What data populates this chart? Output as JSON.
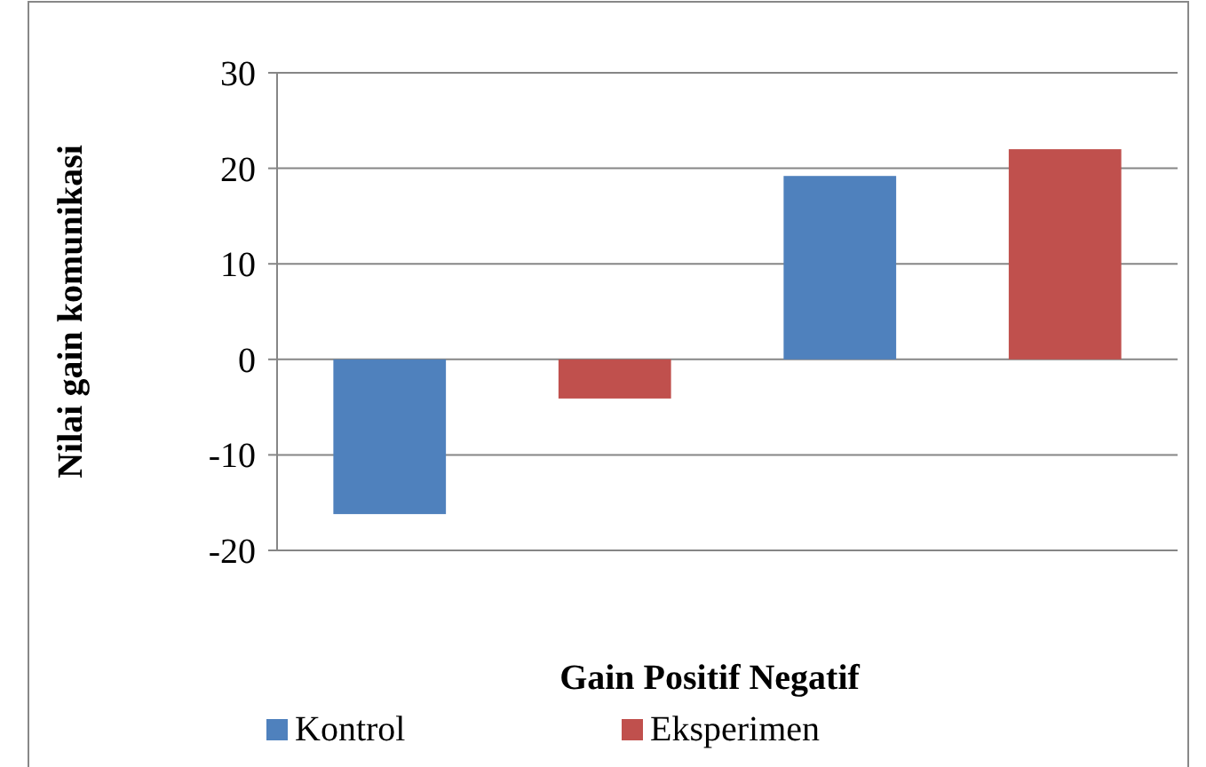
{
  "chart_data": {
    "type": "bar",
    "xlabel": "Gain Positif Negatif",
    "ylabel": "Nilai gain komunikasi",
    "categories": [
      null,
      null,
      null,
      null
    ],
    "series": [
      {
        "name": "Kontrol",
        "color": "#4f81bd",
        "values": [
          -16.2,
          null,
          19.2,
          null
        ]
      },
      {
        "name": "Eksperimen",
        "color": "#c0504d",
        "values": [
          null,
          -4.1,
          null,
          22.0
        ]
      }
    ],
    "ylim": [
      -20,
      30
    ],
    "yticks": [
      -20,
      -10,
      0,
      10,
      20,
      30
    ],
    "grid": "y",
    "legend": "bottom"
  }
}
